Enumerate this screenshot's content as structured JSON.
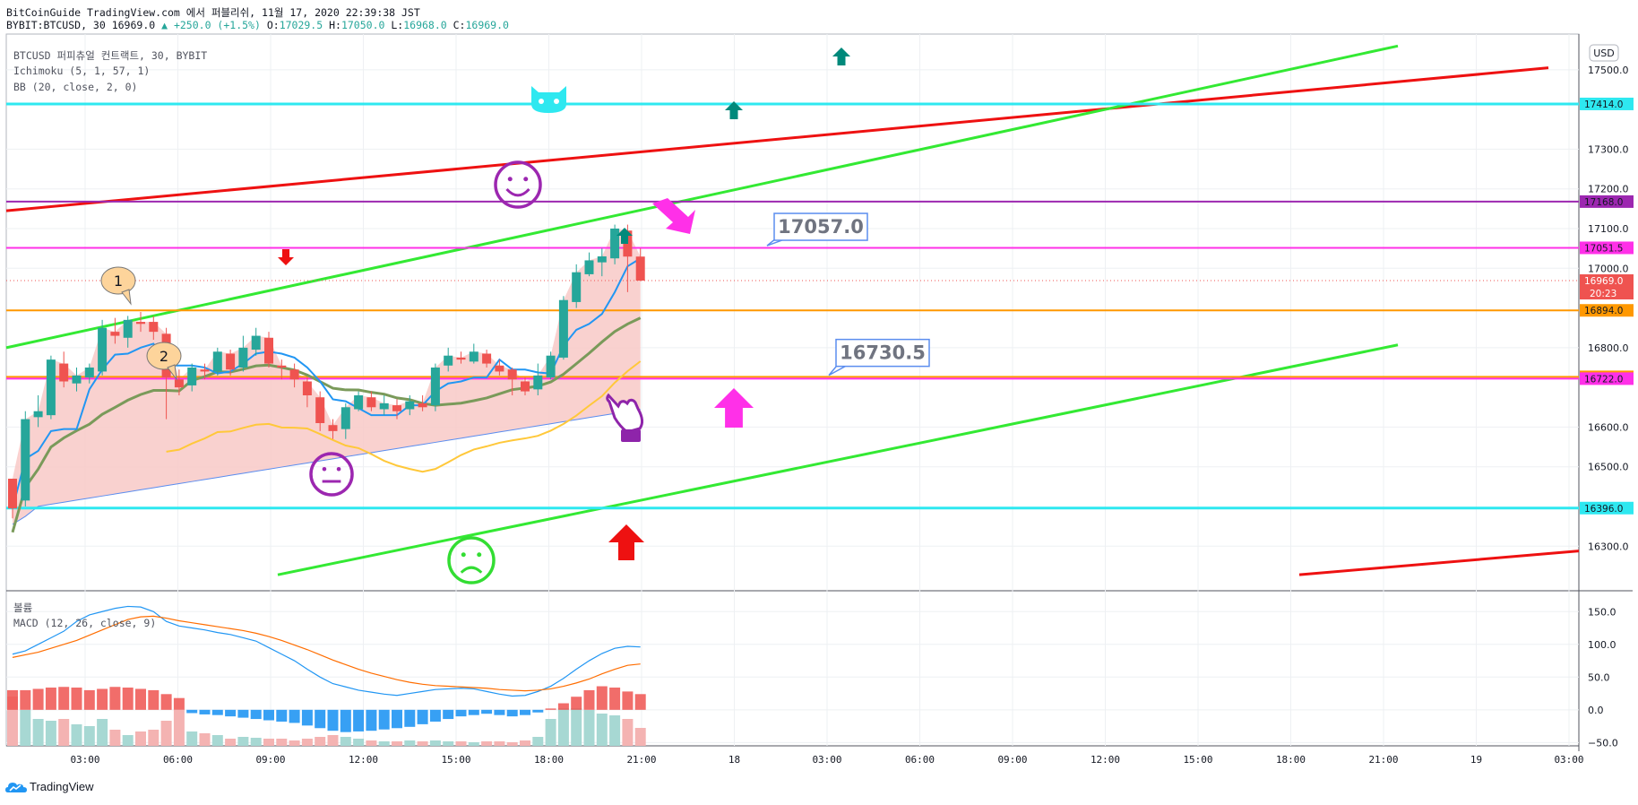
{
  "header": {
    "line1": "BitCoinGuide TradingView.com 에서 퍼블리쉬, 11월 17, 2020 22:39:38 JST",
    "symbol": "BYBIT:BTCUSD, 30 16969.0",
    "change": "▲ +250.0 (+1.5%)",
    "o_label": "O:",
    "o": "17029.5",
    "h_label": "H:",
    "h": "17050.0",
    "l_label": "L:",
    "l": "16968.0",
    "c_label": "C:",
    "c": "16969.0"
  },
  "indicators": {
    "title": "BTCUSD 퍼피츄얼 컨트랙트, 30, BYBIT",
    "ichimoku": "Ichimoku (5, 1, 57, 1)",
    "bb": "BB (20, close, 2, 0)",
    "volume": "볼륨",
    "macd": "MACD (12, 26, close, 9)"
  },
  "currency_badge": "USD",
  "logo_text": "TradingView",
  "colors": {
    "up": "#26a69a",
    "down": "#ef5350",
    "cloud": "#f8c9c7",
    "cyan": "#2ee8f0",
    "purple": "#9c27b0",
    "magenta": "#ff30e8",
    "orange": "#ff9800",
    "green": "#33e933",
    "red": "#ee1111",
    "tenkan": "#2196f3",
    "kijun": "#7a9a5a",
    "yellowline": "#ffc83a",
    "macd_line": "#2196f3",
    "signal_line": "#ff6d00"
  },
  "chart_data": {
    "type": "candlestick",
    "symbol": "BYBIT:BTCUSD",
    "timeframe": "30",
    "price_axis": {
      "ylim": [
        16190,
        17590
      ],
      "ticks": [
        {
          "v": 17500,
          "t": "17500.0"
        },
        {
          "v": 17300,
          "t": "17300.0"
        },
        {
          "v": 17200,
          "t": "17200.0"
        },
        {
          "v": 17100,
          "t": "17100.0"
        },
        {
          "v": 17000,
          "t": "17000.0"
        },
        {
          "v": 16800,
          "t": "16800.0"
        },
        {
          "v": 16600,
          "t": "16600.0"
        },
        {
          "v": 16500,
          "t": "16500.0"
        },
        {
          "v": 16300,
          "t": "16300.0"
        }
      ]
    },
    "time_axis": [
      "03:00",
      "06:00",
      "09:00",
      "12:00",
      "15:00",
      "18:00",
      "21:00",
      "18",
      "03:00",
      "06:00",
      "09:00",
      "12:00",
      "15:00",
      "18:00",
      "21:00",
      "19",
      "03:00"
    ],
    "candles": [
      [
        16480,
        16470,
        16395,
        16370,
        16420
      ],
      [
        16420,
        16415,
        16620,
        16640,
        16400
      ],
      [
        16620,
        16625,
        16640,
        16680,
        16600
      ],
      [
        16640,
        16630,
        16770,
        16780,
        16620
      ],
      [
        16770,
        16760,
        16715,
        16790,
        16700
      ],
      [
        16715,
        16710,
        16730,
        16750,
        16690
      ],
      [
        16730,
        16725,
        16750,
        16760,
        16710
      ],
      [
        16750,
        16740,
        16850,
        16870,
        16730
      ],
      [
        16850,
        16840,
        16830,
        16875,
        16810
      ],
      [
        16830,
        16825,
        16870,
        16880,
        16800
      ],
      [
        16870,
        16865,
        16860,
        16890,
        16840
      ],
      [
        16860,
        16865,
        16840,
        16880,
        16820
      ],
      [
        16840,
        16835,
        16725,
        16850,
        16620
      ],
      [
        16725,
        16720,
        16700,
        16745,
        16680
      ],
      [
        16700,
        16705,
        16750,
        16760,
        16690
      ],
      [
        16750,
        16745,
        16740,
        16760,
        16720
      ],
      [
        16740,
        16740,
        16790,
        16800,
        16730
      ],
      [
        16790,
        16785,
        16745,
        16795,
        16730
      ],
      [
        16745,
        16750,
        16800,
        16830,
        16740
      ],
      [
        16800,
        16795,
        16830,
        16850,
        16780
      ],
      [
        16830,
        16825,
        16760,
        16840,
        16750
      ],
      [
        16760,
        16755,
        16750,
        16770,
        16720
      ],
      [
        16750,
        16745,
        16720,
        16760,
        16700
      ],
      [
        16720,
        16715,
        16680,
        16725,
        16650
      ],
      [
        16680,
        16675,
        16610,
        16690,
        16590
      ],
      [
        16610,
        16605,
        16590,
        16620,
        16570
      ],
      [
        16590,
        16595,
        16650,
        16660,
        16570
      ],
      [
        16650,
        16645,
        16680,
        16690,
        16640
      ],
      [
        16680,
        16675,
        16650,
        16690,
        16640
      ],
      [
        16650,
        16645,
        16660,
        16680,
        16630
      ],
      [
        16660,
        16655,
        16640,
        16670,
        16620
      ],
      [
        16640,
        16645,
        16665,
        16680,
        16630
      ],
      [
        16665,
        16660,
        16650,
        16680,
        16640
      ],
      [
        16650,
        16655,
        16750,
        16760,
        16640
      ],
      [
        16750,
        16755,
        16780,
        16800,
        16740
      ],
      [
        16780,
        16775,
        16770,
        16790,
        16760
      ],
      [
        16770,
        16765,
        16790,
        16810,
        16760
      ],
      [
        16790,
        16785,
        16760,
        16795,
        16750
      ],
      [
        16760,
        16755,
        16740,
        16770,
        16730
      ],
      [
        16740,
        16745,
        16720,
        16750,
        16680
      ],
      [
        16720,
        16715,
        16690,
        16725,
        16680
      ],
      [
        16690,
        16695,
        16730,
        16760,
        16680
      ],
      [
        16730,
        16725,
        16780,
        16790,
        16720
      ],
      [
        16780,
        16775,
        16920,
        16930,
        16770
      ],
      [
        16920,
        16915,
        16990,
        17010,
        16900
      ],
      [
        16990,
        16985,
        17020,
        17040,
        16980
      ],
      [
        17020,
        17015,
        17030,
        17050,
        16980
      ],
      [
        17030,
        17025,
        17100,
        17110,
        17010
      ],
      [
        17100,
        17095,
        17029.5,
        17110,
        16940
      ],
      [
        17029.5,
        17029.5,
        16969,
        17050,
        16968
      ]
    ],
    "candle_format": [
      "prev",
      "open",
      "close",
      "high",
      "low"
    ],
    "horizontal_lines": [
      {
        "price": 17414.0,
        "label": "17414.0",
        "color": "#2ee8f0"
      },
      {
        "price": 17168.0,
        "label": "17168.0",
        "color": "#9c27b0"
      },
      {
        "price": 17051.5,
        "label": "17051.5",
        "color": "#ff30e8"
      },
      {
        "price": 16894.0,
        "label": "16894.0",
        "color": "#ff9800"
      },
      {
        "price": 16726.5,
        "label": "16726.5",
        "color": "#ff9800"
      },
      {
        "price": 16722.0,
        "label": "16722.0",
        "color": "#ff30e8"
      },
      {
        "price": 16396.0,
        "label": "16396.0",
        "color": "#2ee8f0"
      }
    ],
    "last_price": {
      "price": 16969.0,
      "label": "16969.0",
      "countdown": "20:23"
    },
    "callouts": [
      {
        "price": 17057.0,
        "label": "17057.0"
      },
      {
        "price": 16730.5,
        "label": "16730.5"
      }
    ],
    "note_bubbles": [
      "1",
      "2"
    ],
    "macd_axis": {
      "ylim": [
        -55,
        175
      ],
      "ticks": [
        {
          "v": 150,
          "t": "150.0"
        },
        {
          "v": 100,
          "t": "100.0"
        },
        {
          "v": 50,
          "t": "50.0"
        },
        {
          "v": 0,
          "t": "0.0"
        },
        {
          "v": -50,
          "t": "−50.0"
        }
      ]
    },
    "macd_hist": [
      30,
      30,
      32,
      34,
      35,
      34,
      30,
      32,
      35,
      34,
      32,
      30,
      24,
      18,
      -5,
      -7,
      -8,
      -10,
      -12,
      -14,
      -16,
      -18,
      -20,
      -24,
      -28,
      -32,
      -34,
      -33,
      -32,
      -30,
      -28,
      -26,
      -22,
      -18,
      -14,
      -10,
      -8,
      -6,
      -8,
      -10,
      -8,
      -4,
      2,
      10,
      20,
      30,
      36,
      34,
      28,
      24
    ],
    "macd_line": [
      85,
      90,
      100,
      110,
      120,
      135,
      145,
      150,
      155,
      158,
      157,
      150,
      135,
      128,
      125,
      122,
      118,
      115,
      110,
      105,
      95,
      85,
      75,
      62,
      50,
      40,
      35,
      30,
      27,
      24,
      22,
      25,
      28,
      31,
      32,
      33,
      32,
      28,
      24,
      21,
      22,
      28,
      36,
      48,
      62,
      75,
      86,
      94,
      97,
      96
    ],
    "signal_line": [
      80,
      84,
      88,
      94,
      100,
      106,
      114,
      122,
      130,
      138,
      142,
      143,
      140,
      136,
      133,
      130,
      127,
      124,
      121,
      117,
      112,
      106,
      99,
      92,
      84,
      76,
      69,
      62,
      56,
      51,
      46,
      42,
      39,
      37,
      36,
      35,
      34,
      33,
      31,
      30,
      29,
      30,
      32,
      36,
      41,
      47,
      55,
      62,
      68,
      70
    ],
    "volume": [
      55,
      40,
      30,
      28,
      30,
      24,
      22,
      30,
      18,
      12,
      16,
      18,
      28,
      40,
      16,
      14,
      12,
      8,
      10,
      9,
      8,
      8,
      6,
      8,
      10,
      12,
      10,
      8,
      6,
      5,
      5,
      6,
      5,
      6,
      5,
      5,
      4,
      5,
      5,
      4,
      6,
      10,
      30,
      42,
      42,
      40,
      36,
      34,
      30,
      20
    ]
  }
}
